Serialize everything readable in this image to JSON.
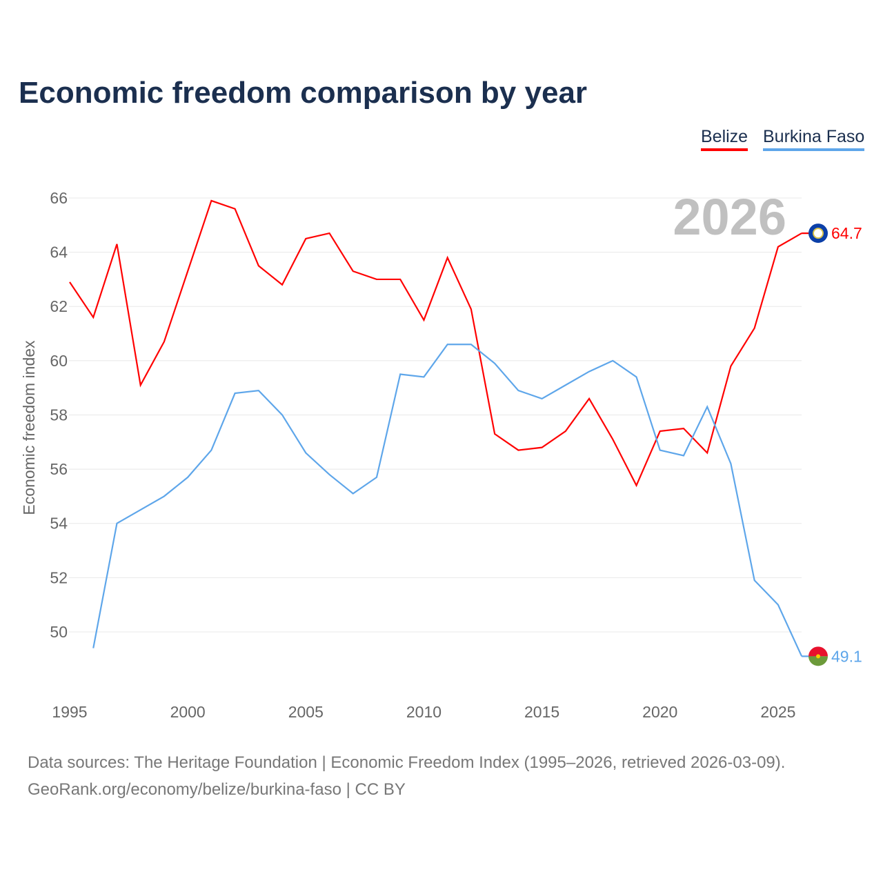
{
  "chart_data": {
    "type": "line",
    "title": "Economic freedom comparison by year",
    "ylabel": "Economic freedom index",
    "xlabel": "",
    "ylim": [
      48,
      66.5
    ],
    "xlim": [
      1995,
      2026
    ],
    "yticks": [
      50,
      52,
      54,
      56,
      58,
      60,
      62,
      64,
      66
    ],
    "xticks": [
      1995,
      2000,
      2005,
      2010,
      2015,
      2020,
      2025
    ],
    "grid": true,
    "legend_position": "top-right",
    "year_label": "2026",
    "series": [
      {
        "name": "Belize",
        "color": "#ff0000",
        "end_label": "64.7",
        "x": [
          1995,
          1996,
          1997,
          1998,
          1999,
          2000,
          2001,
          2002,
          2003,
          2004,
          2005,
          2006,
          2007,
          2008,
          2009,
          2010,
          2011,
          2012,
          2013,
          2014,
          2015,
          2016,
          2017,
          2018,
          2019,
          2020,
          2021,
          2022,
          2023,
          2024,
          2025,
          2026
        ],
        "values": [
          62.9,
          61.6,
          64.3,
          59.1,
          60.7,
          63.3,
          65.9,
          65.6,
          63.5,
          62.8,
          64.5,
          64.7,
          63.3,
          63.0,
          63.0,
          61.5,
          63.8,
          61.9,
          57.3,
          56.7,
          56.8,
          57.4,
          58.6,
          57.1,
          55.4,
          57.4,
          57.5,
          56.6,
          59.8,
          61.2,
          64.2,
          64.7
        ]
      },
      {
        "name": "Burkina Faso",
        "color": "#5ea6ea",
        "end_label": "49.1",
        "x": [
          1996,
          1997,
          1998,
          1999,
          2000,
          2001,
          2002,
          2003,
          2004,
          2005,
          2006,
          2007,
          2008,
          2009,
          2010,
          2011,
          2012,
          2013,
          2014,
          2015,
          2016,
          2017,
          2018,
          2019,
          2020,
          2021,
          2022,
          2023,
          2024,
          2025,
          2026
        ],
        "values": [
          49.4,
          54.0,
          54.5,
          55.0,
          55.7,
          56.7,
          58.8,
          58.9,
          58.0,
          56.6,
          55.8,
          55.1,
          55.7,
          59.5,
          59.4,
          60.6,
          60.6,
          59.9,
          58.9,
          58.6,
          59.1,
          59.6,
          60.0,
          59.4,
          56.7,
          56.5,
          58.3,
          56.2,
          51.9,
          51.0,
          49.1
        ]
      }
    ]
  },
  "footer": {
    "line1": "Data sources: The Heritage Foundation | Economic Freedom Index (1995–2026, retrieved 2026-03-09).",
    "line2": "GeoRank.org/economy/belize/burkina-faso | CC BY"
  }
}
